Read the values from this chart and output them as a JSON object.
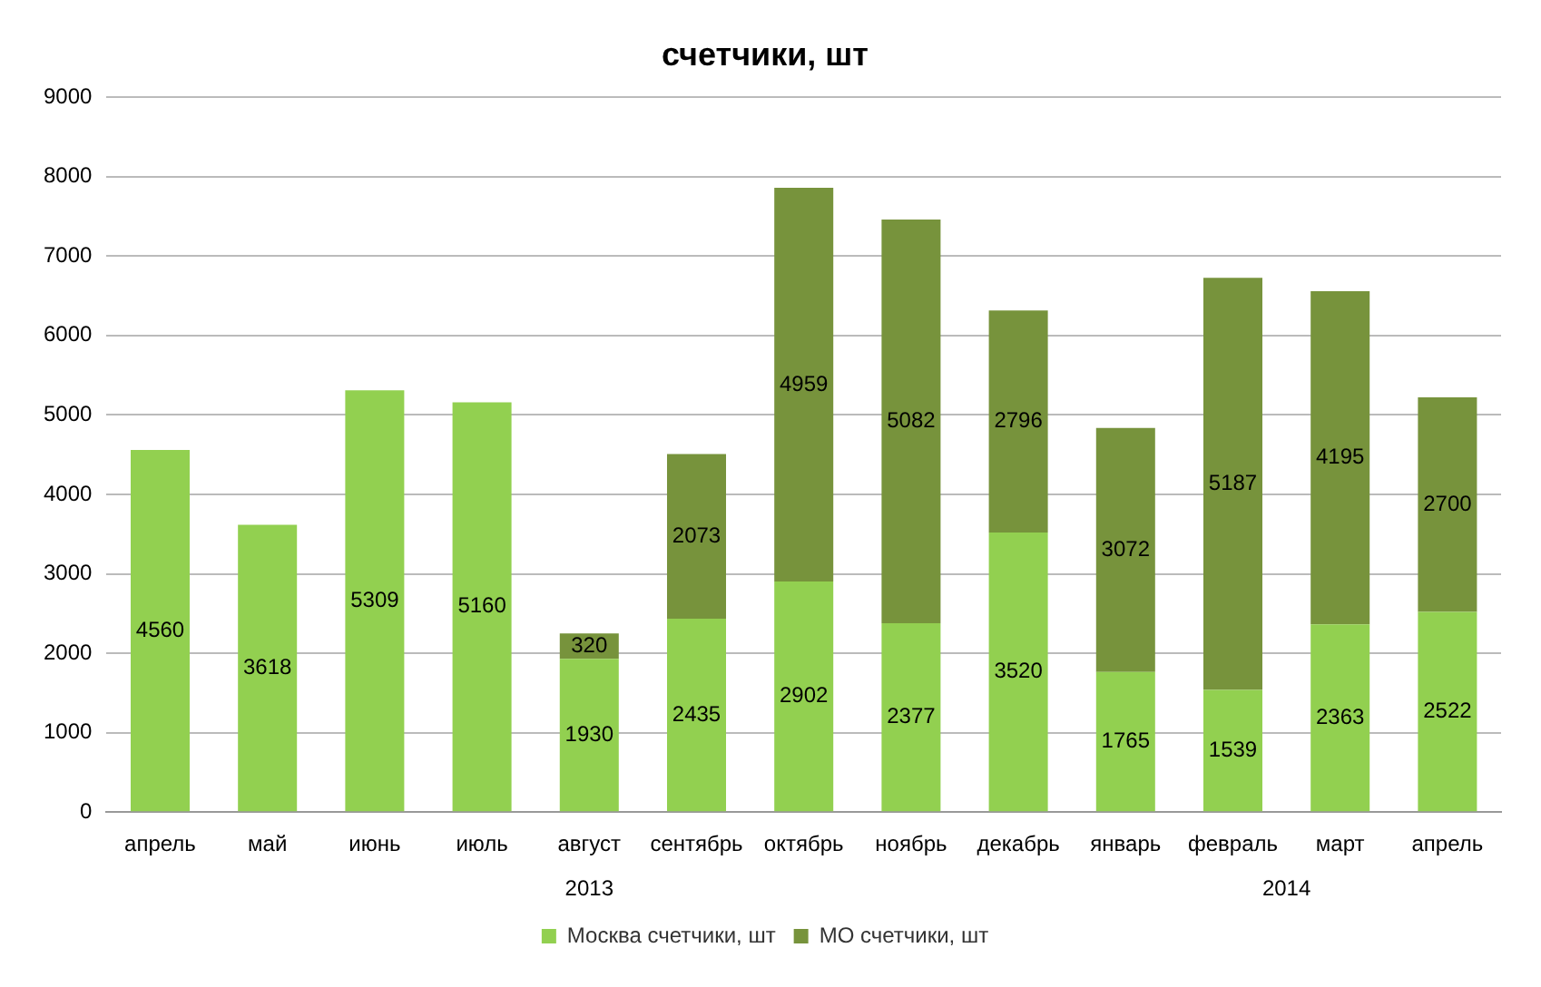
{
  "chart_data": {
    "type": "bar",
    "title": "счетчики, шт",
    "categories": [
      "апрель",
      "май",
      "июнь",
      "июль",
      "август",
      "сентябрь",
      "октябрь",
      "ноябрь",
      "декабрь",
      "январь",
      "февраль",
      "март",
      "апрель"
    ],
    "series": [
      {
        "name": "Москва счетчики, шт",
        "color": "#92d050",
        "values": [
          4560,
          3618,
          5309,
          5160,
          1930,
          2435,
          2902,
          2377,
          3520,
          1765,
          1539,
          2363,
          2522
        ]
      },
      {
        "name": "МО счетчики, шт",
        "color": "#77933c",
        "values": [
          null,
          null,
          null,
          null,
          320,
          2073,
          4959,
          5082,
          2796,
          3072,
          5187,
          4195,
          2700
        ]
      }
    ],
    "stacked": true,
    "data_labels": true,
    "ylim": [
      0,
      9000
    ],
    "yticks": [
      0,
      1000,
      2000,
      3000,
      4000,
      5000,
      6000,
      7000,
      8000,
      9000
    ],
    "grid": "y",
    "legend": "bottom",
    "annotations": [
      "2013",
      "2014"
    ]
  }
}
